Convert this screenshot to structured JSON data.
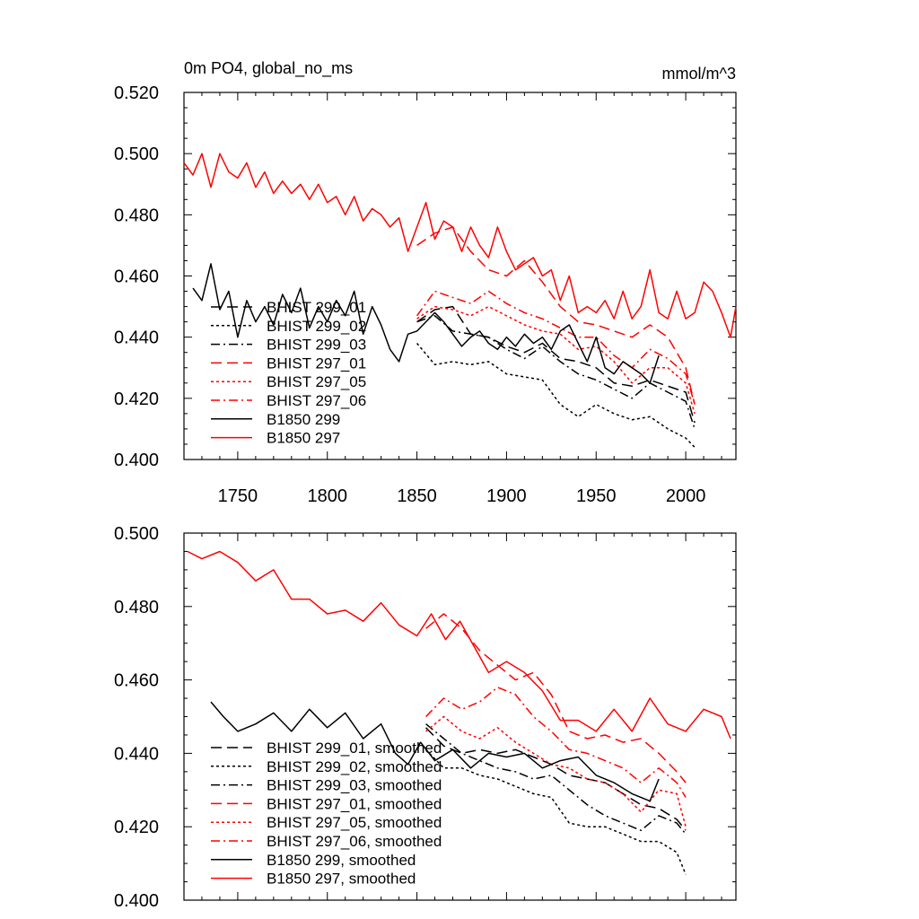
{
  "chart_data": [
    {
      "type": "line",
      "title": "0m PO4, global_no_ms",
      "units": "mmol/m^3",
      "xlim": [
        1720,
        2028
      ],
      "ylim": [
        0.4,
        0.52
      ],
      "x_tick_labels": [
        "1750",
        "1800",
        "1850",
        "1900",
        "1950",
        "2000"
      ],
      "y_tick_labels": [
        "0.400",
        "0.420",
        "0.440",
        "0.460",
        "0.480",
        "0.500",
        "0.520"
      ],
      "legend_position": "lower-left",
      "series": [
        {
          "name": "BHIST 299_01",
          "color": "#000000",
          "dash": "longdash",
          "x": [
            1850,
            1860,
            1870,
            1880,
            1890,
            1900,
            1910,
            1920,
            1930,
            1940,
            1950,
            1960,
            1970,
            1980,
            1990,
            2000,
            2005
          ],
          "y": [
            0.445,
            0.449,
            0.45,
            0.441,
            0.44,
            0.437,
            0.435,
            0.438,
            0.433,
            0.432,
            0.43,
            0.425,
            0.424,
            0.426,
            0.424,
            0.422,
            0.412
          ]
        },
        {
          "name": "BHIST 299_02",
          "color": "#000000",
          "dash": "shortdash",
          "x": [
            1850,
            1860,
            1870,
            1880,
            1890,
            1900,
            1910,
            1920,
            1930,
            1940,
            1950,
            1960,
            1970,
            1980,
            1990,
            2000,
            2005
          ],
          "y": [
            0.438,
            0.431,
            0.432,
            0.431,
            0.432,
            0.428,
            0.427,
            0.426,
            0.418,
            0.414,
            0.418,
            0.415,
            0.413,
            0.414,
            0.41,
            0.407,
            0.404
          ]
        },
        {
          "name": "BHIST 299_03",
          "color": "#000000",
          "dash": "dashdot",
          "x": [
            1850,
            1860,
            1870,
            1880,
            1890,
            1900,
            1910,
            1920,
            1930,
            1940,
            1950,
            1960,
            1970,
            1980,
            1990,
            2000,
            2005
          ],
          "y": [
            0.445,
            0.447,
            0.442,
            0.441,
            0.44,
            0.436,
            0.433,
            0.437,
            0.432,
            0.428,
            0.426,
            0.423,
            0.42,
            0.425,
            0.422,
            0.419,
            0.41
          ]
        },
        {
          "name": "BHIST 297_01",
          "color": "#ff0000",
          "dash": "longdash",
          "x": [
            1850,
            1860,
            1870,
            1880,
            1890,
            1900,
            1910,
            1920,
            1930,
            1940,
            1950,
            1960,
            1970,
            1980,
            1990,
            2000,
            2005
          ],
          "y": [
            0.47,
            0.474,
            0.476,
            0.468,
            0.462,
            0.46,
            0.465,
            0.458,
            0.45,
            0.445,
            0.444,
            0.442,
            0.44,
            0.444,
            0.44,
            0.43,
            0.418
          ]
        },
        {
          "name": "BHIST 297_05",
          "color": "#ff0000",
          "dash": "shortdash",
          "x": [
            1850,
            1860,
            1870,
            1880,
            1890,
            1900,
            1910,
            1920,
            1930,
            1940,
            1950,
            1960,
            1970,
            1980,
            1990,
            2000,
            2005
          ],
          "y": [
            0.446,
            0.45,
            0.449,
            0.447,
            0.45,
            0.447,
            0.444,
            0.442,
            0.441,
            0.436,
            0.437,
            0.432,
            0.425,
            0.43,
            0.43,
            0.425,
            0.415
          ]
        },
        {
          "name": "BHIST 297_06",
          "color": "#ff0000",
          "dash": "dashdot",
          "x": [
            1850,
            1860,
            1870,
            1880,
            1890,
            1900,
            1910,
            1920,
            1930,
            1940,
            1950,
            1960,
            1970,
            1980,
            1990,
            2000,
            2005
          ],
          "y": [
            0.447,
            0.455,
            0.453,
            0.451,
            0.455,
            0.451,
            0.448,
            0.446,
            0.443,
            0.44,
            0.44,
            0.434,
            0.43,
            0.436,
            0.433,
            0.428,
            0.418
          ]
        },
        {
          "name": "B1850 299",
          "color": "#000000",
          "dash": "solid",
          "x": [
            1725,
            1730,
            1735,
            1740,
            1745,
            1750,
            1755,
            1760,
            1765,
            1770,
            1775,
            1780,
            1785,
            1790,
            1795,
            1800,
            1805,
            1810,
            1815,
            1820,
            1825,
            1830,
            1835,
            1840,
            1845,
            1850,
            1855,
            1860,
            1865,
            1870,
            1875,
            1880,
            1885,
            1890,
            1895,
            1900,
            1905,
            1910,
            1915,
            1920,
            1925,
            1930,
            1935,
            1940,
            1945,
            1950,
            1955,
            1960,
            1965,
            1970,
            1975,
            1980,
            1985
          ],
          "y": [
            0.456,
            0.452,
            0.464,
            0.449,
            0.455,
            0.44,
            0.452,
            0.445,
            0.45,
            0.444,
            0.454,
            0.448,
            0.456,
            0.443,
            0.45,
            0.445,
            0.452,
            0.447,
            0.455,
            0.441,
            0.45,
            0.444,
            0.436,
            0.432,
            0.441,
            0.442,
            0.445,
            0.448,
            0.445,
            0.441,
            0.437,
            0.44,
            0.442,
            0.438,
            0.436,
            0.44,
            0.437,
            0.441,
            0.438,
            0.44,
            0.436,
            0.442,
            0.444,
            0.438,
            0.432,
            0.44,
            0.43,
            0.428,
            0.432,
            0.43,
            0.428,
            0.425,
            0.434
          ]
        },
        {
          "name": "B1850 297",
          "color": "#ff0000",
          "dash": "solid",
          "x": [
            1720,
            1725,
            1730,
            1735,
            1740,
            1745,
            1750,
            1755,
            1760,
            1765,
            1770,
            1775,
            1780,
            1785,
            1790,
            1795,
            1800,
            1805,
            1810,
            1815,
            1820,
            1825,
            1830,
            1835,
            1840,
            1845,
            1850,
            1855,
            1860,
            1865,
            1870,
            1875,
            1880,
            1885,
            1890,
            1895,
            1900,
            1905,
            1910,
            1915,
            1920,
            1925,
            1930,
            1935,
            1940,
            1945,
            1950,
            1955,
            1960,
            1965,
            1970,
            1975,
            1980,
            1985,
            1990,
            1995,
            2000,
            2005,
            2010,
            2015,
            2020,
            2025,
            2028
          ],
          "y": [
            0.497,
            0.493,
            0.5,
            0.489,
            0.5,
            0.494,
            0.492,
            0.497,
            0.489,
            0.494,
            0.487,
            0.491,
            0.487,
            0.49,
            0.485,
            0.49,
            0.484,
            0.486,
            0.48,
            0.486,
            0.478,
            0.482,
            0.48,
            0.476,
            0.479,
            0.468,
            0.476,
            0.484,
            0.472,
            0.478,
            0.476,
            0.468,
            0.476,
            0.47,
            0.466,
            0.476,
            0.468,
            0.462,
            0.464,
            0.466,
            0.46,
            0.462,
            0.452,
            0.46,
            0.448,
            0.45,
            0.448,
            0.452,
            0.446,
            0.455,
            0.446,
            0.45,
            0.462,
            0.448,
            0.446,
            0.455,
            0.446,
            0.448,
            0.458,
            0.455,
            0.448,
            0.44,
            0.45
          ]
        }
      ]
    },
    {
      "type": "line",
      "xlim": [
        1720,
        2028
      ],
      "ylim": [
        0.4,
        0.5
      ],
      "x_tick_labels": [],
      "y_tick_labels": [
        "0.400",
        "0.420",
        "0.440",
        "0.460",
        "0.480",
        "0.500"
      ],
      "legend_position": "lower-left",
      "series": [
        {
          "name": "BHIST 299_01, smoothed",
          "color": "#000000",
          "dash": "longdash",
          "x": [
            1855,
            1865,
            1875,
            1885,
            1895,
            1905,
            1915,
            1925,
            1935,
            1945,
            1955,
            1965,
            1975,
            1985,
            1995,
            2000
          ],
          "y": [
            0.447,
            0.442,
            0.44,
            0.441,
            0.44,
            0.441,
            0.439,
            0.437,
            0.434,
            0.433,
            0.432,
            0.429,
            0.426,
            0.425,
            0.422,
            0.419
          ]
        },
        {
          "name": "BHIST 299_02, smoothed",
          "color": "#000000",
          "dash": "shortdash",
          "x": [
            1855,
            1865,
            1875,
            1885,
            1895,
            1905,
            1915,
            1925,
            1935,
            1945,
            1955,
            1965,
            1975,
            1985,
            1995,
            2000
          ],
          "y": [
            0.441,
            0.436,
            0.436,
            0.434,
            0.433,
            0.431,
            0.429,
            0.428,
            0.421,
            0.42,
            0.42,
            0.418,
            0.416,
            0.416,
            0.413,
            0.407
          ]
        },
        {
          "name": "BHIST 299_03, smoothed",
          "color": "#000000",
          "dash": "dashdot",
          "x": [
            1855,
            1865,
            1875,
            1885,
            1895,
            1905,
            1915,
            1925,
            1935,
            1945,
            1955,
            1965,
            1975,
            1985,
            1995,
            2000
          ],
          "y": [
            0.448,
            0.444,
            0.44,
            0.438,
            0.436,
            0.435,
            0.433,
            0.434,
            0.43,
            0.426,
            0.423,
            0.421,
            0.419,
            0.423,
            0.421,
            0.418
          ]
        },
        {
          "name": "BHIST 297_01, smoothed",
          "color": "#ff0000",
          "dash": "longdash",
          "x": [
            1855,
            1865,
            1875,
            1885,
            1895,
            1905,
            1915,
            1925,
            1935,
            1945,
            1955,
            1965,
            1975,
            1985,
            1995,
            2000
          ],
          "y": [
            0.474,
            0.478,
            0.474,
            0.468,
            0.464,
            0.46,
            0.462,
            0.456,
            0.446,
            0.444,
            0.445,
            0.443,
            0.444,
            0.44,
            0.435,
            0.432
          ]
        },
        {
          "name": "BHIST 297_05, smoothed",
          "color": "#ff0000",
          "dash": "shortdash",
          "x": [
            1855,
            1865,
            1875,
            1885,
            1895,
            1905,
            1915,
            1925,
            1935,
            1945,
            1955,
            1965,
            1975,
            1985,
            1995,
            2000
          ],
          "y": [
            0.446,
            0.45,
            0.446,
            0.444,
            0.447,
            0.443,
            0.44,
            0.437,
            0.436,
            0.433,
            0.432,
            0.429,
            0.424,
            0.43,
            0.429,
            0.42
          ]
        },
        {
          "name": "BHIST 297_06, smoothed",
          "color": "#ff0000",
          "dash": "dashdot",
          "x": [
            1855,
            1865,
            1875,
            1885,
            1895,
            1905,
            1915,
            1925,
            1935,
            1945,
            1955,
            1965,
            1975,
            1985,
            1995,
            2000
          ],
          "y": [
            0.45,
            0.455,
            0.452,
            0.454,
            0.458,
            0.456,
            0.45,
            0.446,
            0.441,
            0.44,
            0.438,
            0.436,
            0.432,
            0.436,
            0.432,
            0.428
          ]
        },
        {
          "name": "B1850 299, smoothed",
          "color": "#000000",
          "dash": "solid",
          "x": [
            1735,
            1742,
            1750,
            1760,
            1770,
            1780,
            1790,
            1800,
            1810,
            1820,
            1830,
            1838,
            1845,
            1852,
            1860,
            1870,
            1880,
            1890,
            1900,
            1910,
            1920,
            1930,
            1940,
            1950,
            1960,
            1970,
            1980,
            1985
          ],
          "y": [
            0.454,
            0.45,
            0.446,
            0.448,
            0.451,
            0.446,
            0.452,
            0.447,
            0.451,
            0.444,
            0.448,
            0.44,
            0.437,
            0.443,
            0.438,
            0.441,
            0.436,
            0.44,
            0.439,
            0.44,
            0.436,
            0.438,
            0.439,
            0.434,
            0.432,
            0.429,
            0.427,
            0.433
          ]
        },
        {
          "name": "B1850 297, smoothed",
          "color": "#ff0000",
          "dash": "solid",
          "x": [
            1722,
            1730,
            1740,
            1750,
            1760,
            1770,
            1780,
            1790,
            1800,
            1810,
            1820,
            1830,
            1840,
            1850,
            1858,
            1866,
            1874,
            1882,
            1890,
            1900,
            1910,
            1920,
            1930,
            1940,
            1950,
            1960,
            1970,
            1980,
            1990,
            2000,
            2010,
            2020,
            2025
          ],
          "y": [
            0.495,
            0.493,
            0.495,
            0.492,
            0.487,
            0.49,
            0.482,
            0.482,
            0.478,
            0.479,
            0.476,
            0.481,
            0.475,
            0.472,
            0.478,
            0.471,
            0.476,
            0.469,
            0.462,
            0.465,
            0.462,
            0.457,
            0.449,
            0.449,
            0.446,
            0.452,
            0.446,
            0.455,
            0.448,
            0.446,
            0.452,
            0.45,
            0.444
          ]
        }
      ]
    }
  ]
}
